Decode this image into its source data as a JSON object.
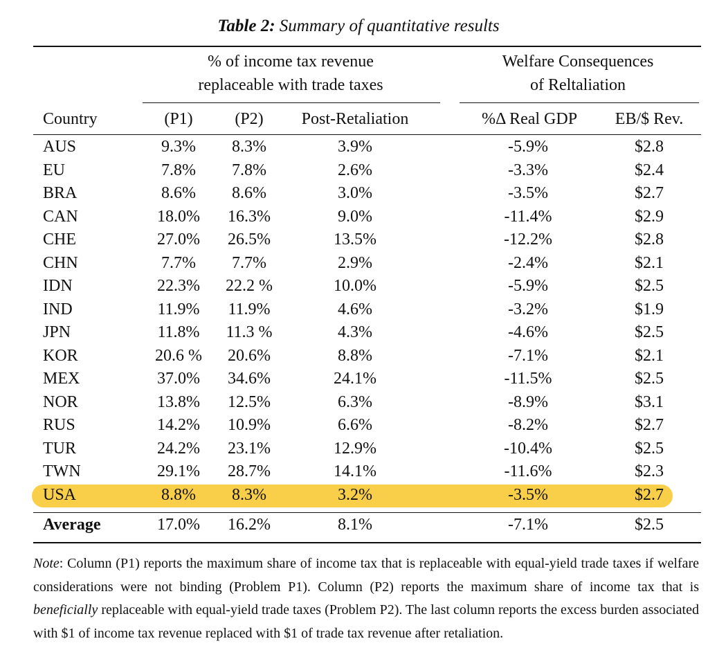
{
  "title": {
    "label": "Table 2:",
    "text": "Summary of quantitative results"
  },
  "header": {
    "group1": [
      "% of income tax revenue",
      "replaceable with trade taxes"
    ],
    "group2": [
      "Welfare Consequences",
      "of Reltaliation"
    ],
    "columns": [
      "Country",
      "(P1)",
      "(P2)",
      "Post-Retaliation",
      "%Δ Real GDP",
      "EB/$ Rev."
    ]
  },
  "rows": [
    [
      "AUS",
      "9.3%",
      "8.3%",
      "3.9%",
      "-5.9%",
      "$2.8"
    ],
    [
      "EU",
      "7.8%",
      "7.8%",
      "2.6%",
      "-3.3%",
      "$2.4"
    ],
    [
      "BRA",
      "8.6%",
      "8.6%",
      "3.0%",
      "-3.5%",
      "$2.7"
    ],
    [
      "CAN",
      "18.0%",
      "16.3%",
      "9.0%",
      "-11.4%",
      "$2.9"
    ],
    [
      "CHE",
      "27.0%",
      "26.5%",
      "13.5%",
      "-12.2%",
      "$2.8"
    ],
    [
      "CHN",
      "7.7%",
      "7.7%",
      "2.9%",
      "-2.4%",
      "$2.1"
    ],
    [
      "IDN",
      "22.3%",
      "22.2 %",
      "10.0%",
      "-5.9%",
      "$2.5"
    ],
    [
      "IND",
      "11.9%",
      "11.9%",
      "4.6%",
      "-3.2%",
      "$1.9"
    ],
    [
      "JPN",
      "11.8%",
      "11.3 %",
      "4.3%",
      "-4.6%",
      "$2.5"
    ],
    [
      "KOR",
      "20.6 %",
      "20.6%",
      "8.8%",
      "-7.1%",
      "$2.1"
    ],
    [
      "MEX",
      "37.0%",
      "34.6%",
      "24.1%",
      "-11.5%",
      "$2.5"
    ],
    [
      "NOR",
      "13.8%",
      "12.5%",
      "6.3%",
      "-8.9%",
      "$3.1"
    ],
    [
      "RUS",
      "14.2%",
      "10.9%",
      "6.6%",
      "-8.2%",
      "$2.7"
    ],
    [
      "TUR",
      "24.2%",
      "23.1%",
      "12.9%",
      "-10.4%",
      "$2.5"
    ],
    [
      "TWN",
      "29.1%",
      "28.7%",
      "14.1%",
      "-11.6%",
      "$2.3"
    ],
    [
      "USA",
      "8.8%",
      "8.3%",
      "3.2%",
      "-3.5%",
      "$2.7"
    ]
  ],
  "average": [
    "Average",
    "17.0%",
    "16.2%",
    "8.1%",
    "-7.1%",
    "$2.5"
  ],
  "highlight": {
    "row": "USA",
    "color": "#f9cf4a"
  },
  "note": {
    "label": "Note",
    "part1": ": Column (P1) reports the maximum share of income tax that is replaceable with equal-yield trade taxes if welfare considerations were not binding (Problem P1). Column (P2) reports the maximum share of income tax that is ",
    "emphasis": "beneficially",
    "part2": " replaceable with equal-yield trade taxes (Problem P2).  The last column reports the excess burden associated with $1 of income tax revenue replaced with $1 of trade tax revenue after retaliation."
  }
}
